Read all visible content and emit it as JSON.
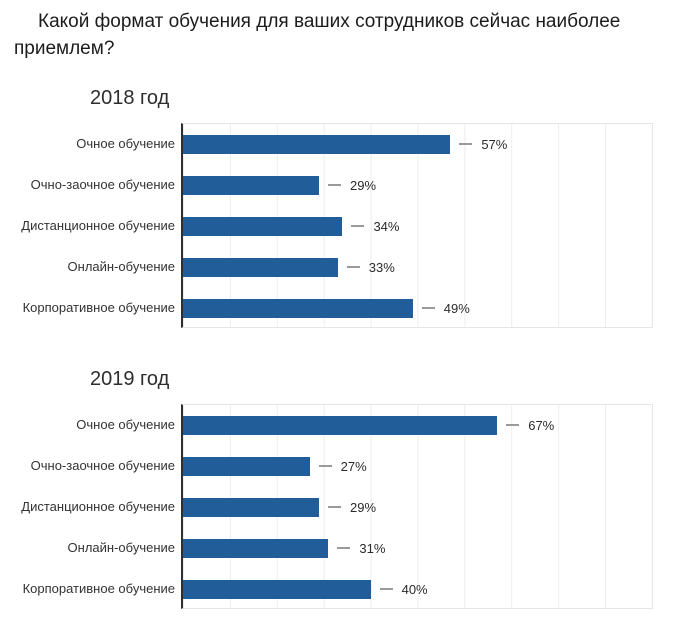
{
  "title": "Какой формат обучения для ваших сотрудников сейчас наиболее приемлем?",
  "colors": {
    "bar": "#205d99",
    "axis": "#2f2f2f",
    "gridline": "#ededed",
    "plot_border": "#e6e6e6",
    "dash": "#9a9a9a",
    "title_text": "#1c1c1c",
    "label_text": "#333333"
  },
  "chart_data": [
    {
      "type": "bar",
      "orientation": "horizontal",
      "title": "2018 год",
      "categories": [
        "Очное обучение",
        "Очно-заочное обучение",
        "Дистанционное обучение",
        "Онлайн-обучение",
        "Корпоративное обучение"
      ],
      "values": [
        57,
        29,
        34,
        33,
        49
      ],
      "value_labels": [
        "57%",
        "29%",
        "34%",
        "33%",
        "49%"
      ],
      "xlim": [
        0,
        100
      ],
      "grid": true,
      "gridline_interval_percent": 10,
      "legend": "none"
    },
    {
      "type": "bar",
      "orientation": "horizontal",
      "title": "2019 год",
      "categories": [
        "Очное обучение",
        "Очно-заочное обучение",
        "Дистанционное обучение",
        "Онлайн-обучение",
        "Корпоративное обучение"
      ],
      "values": [
        67,
        27,
        29,
        31,
        40
      ],
      "value_labels": [
        "67%",
        "27%",
        "29%",
        "31%",
        "40%"
      ],
      "xlim": [
        0,
        100
      ],
      "grid": true,
      "gridline_interval_percent": 10,
      "legend": "none"
    }
  ]
}
